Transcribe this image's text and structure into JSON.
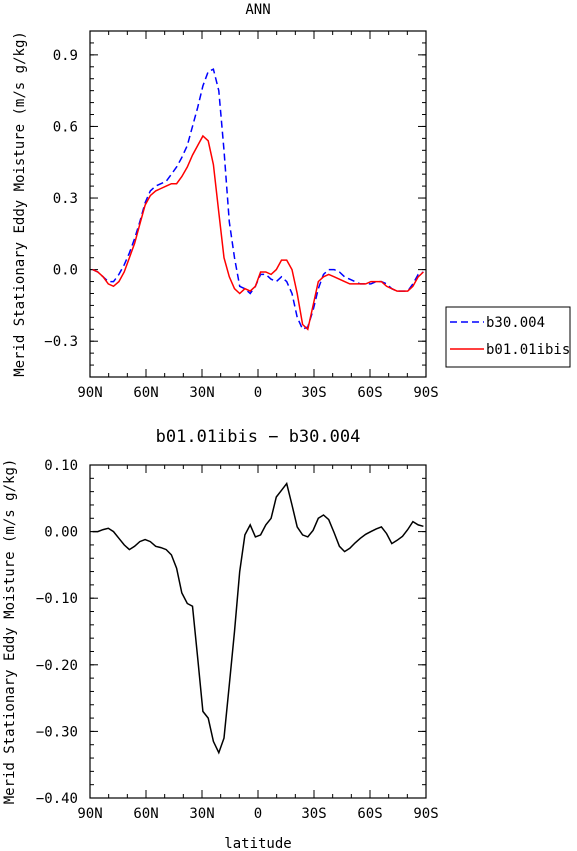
{
  "chart_data": [
    {
      "type": "line",
      "title": "ANN",
      "xlabel": "",
      "ylabel": "Merid Stationary Eddy Moisture (m/s g/kg)",
      "xlim": [
        90,
        -90
      ],
      "ylim": [
        -0.45,
        1.0
      ],
      "x_ticks": [
        {
          "value": 90,
          "label": "90N"
        },
        {
          "value": 60,
          "label": "60N"
        },
        {
          "value": 30,
          "label": "30N"
        },
        {
          "value": 0,
          "label": "0"
        },
        {
          "value": -30,
          "label": "30S"
        },
        {
          "value": -60,
          "label": "60S"
        },
        {
          "value": -90,
          "label": "90S"
        }
      ],
      "y_ticks": [
        {
          "value": 0.9,
          "label": "0.9"
        },
        {
          "value": 0.6,
          "label": "0.6"
        },
        {
          "value": 0.3,
          "label": "0.3"
        },
        {
          "value": 0.0,
          "label": "0.0"
        },
        {
          "value": -0.3,
          "label": "−0.3"
        }
      ],
      "legend_position": "right",
      "series": [
        {
          "name": "b30.004",
          "color": "#0000ff",
          "dash": "dashed",
          "x": [
            88.6,
            85.8,
            83,
            80.2,
            77.4,
            74.5,
            71.7,
            68.9,
            66.1,
            63.3,
            60.5,
            57.7,
            54.8,
            52,
            49.2,
            46.4,
            43.6,
            40.8,
            37.9,
            35.1,
            32.3,
            29.5,
            26.7,
            23.9,
            21,
            18.2,
            15.4,
            12.6,
            9.8,
            7,
            4.2,
            1.4,
            -1.4,
            -4.2,
            -7,
            -9.8,
            -12.6,
            -15.4,
            -18.2,
            -21,
            -23.9,
            -26.7,
            -29.5,
            -32.3,
            -35.1,
            -37.9,
            -40.8,
            -43.6,
            -46.4,
            -49.2,
            -52,
            -54.8,
            -57.7,
            -60.5,
            -63.3,
            -66.1,
            -68.9,
            -71.7,
            -74.5,
            -77.4,
            -80.2,
            -83,
            -85.8,
            -88.6
          ],
          "y": [
            0.0,
            -0.01,
            -0.03,
            -0.05,
            -0.05,
            -0.02,
            0.02,
            0.07,
            0.13,
            0.2,
            0.28,
            0.33,
            0.35,
            0.36,
            0.37,
            0.4,
            0.43,
            0.47,
            0.52,
            0.6,
            0.68,
            0.77,
            0.83,
            0.84,
            0.75,
            0.5,
            0.2,
            0.05,
            -0.07,
            -0.08,
            -0.1,
            -0.07,
            -0.02,
            -0.02,
            -0.04,
            -0.05,
            -0.03,
            -0.05,
            -0.1,
            -0.2,
            -0.25,
            -0.24,
            -0.17,
            -0.08,
            -0.02,
            0.0,
            0.0,
            -0.01,
            -0.03,
            -0.04,
            -0.05,
            -0.06,
            -0.06,
            -0.06,
            -0.05,
            -0.05,
            -0.06,
            -0.08,
            -0.09,
            -0.09,
            -0.09,
            -0.06,
            -0.02,
            -0.01
          ]
        },
        {
          "name": "b01.01ibis",
          "color": "#ff0000",
          "dash": "solid",
          "x": [
            88.6,
            85.8,
            83,
            80.2,
            77.4,
            74.5,
            71.7,
            68.9,
            66.1,
            63.3,
            60.5,
            57.7,
            54.8,
            52,
            49.2,
            46.4,
            43.6,
            40.8,
            37.9,
            35.1,
            32.3,
            29.5,
            26.7,
            23.9,
            21,
            18.2,
            15.4,
            12.6,
            9.8,
            7,
            4.2,
            1.4,
            -1.4,
            -4.2,
            -7,
            -9.8,
            -12.6,
            -15.4,
            -18.2,
            -21,
            -23.9,
            -26.7,
            -29.5,
            -32.3,
            -35.1,
            -37.9,
            -40.8,
            -43.6,
            -46.4,
            -49.2,
            -52,
            -54.8,
            -57.7,
            -60.5,
            -63.3,
            -66.1,
            -68.9,
            -71.7,
            -74.5,
            -77.4,
            -80.2,
            -83,
            -85.8,
            -88.6
          ],
          "y": [
            0.0,
            -0.01,
            -0.03,
            -0.06,
            -0.07,
            -0.05,
            -0.01,
            0.05,
            0.11,
            0.19,
            0.27,
            0.31,
            0.33,
            0.34,
            0.35,
            0.36,
            0.36,
            0.39,
            0.43,
            0.48,
            0.52,
            0.56,
            0.54,
            0.44,
            0.24,
            0.05,
            -0.03,
            -0.08,
            -0.1,
            -0.08,
            -0.09,
            -0.07,
            -0.01,
            -0.01,
            -0.02,
            0.0,
            0.04,
            0.04,
            0.0,
            -0.1,
            -0.23,
            -0.25,
            -0.15,
            -0.05,
            -0.03,
            -0.02,
            -0.03,
            -0.04,
            -0.05,
            -0.06,
            -0.06,
            -0.06,
            -0.06,
            -0.05,
            -0.05,
            -0.05,
            -0.07,
            -0.08,
            -0.09,
            -0.09,
            -0.09,
            -0.07,
            -0.03,
            -0.01
          ]
        }
      ]
    },
    {
      "type": "line",
      "title": "b01.01ibis − b30.004",
      "xlabel": "latitude",
      "ylabel": "Merid Stationary Eddy Moisture (m/s g/kg)",
      "xlim": [
        90,
        -90
      ],
      "ylim": [
        -0.4,
        0.1
      ],
      "x_ticks": [
        {
          "value": 90,
          "label": "90N"
        },
        {
          "value": 60,
          "label": "60N"
        },
        {
          "value": 30,
          "label": "30N"
        },
        {
          "value": 0,
          "label": "0"
        },
        {
          "value": -30,
          "label": "30S"
        },
        {
          "value": -60,
          "label": "60S"
        },
        {
          "value": -90,
          "label": "90S"
        }
      ],
      "y_ticks": [
        {
          "value": 0.1,
          "label": "0.10"
        },
        {
          "value": 0.0,
          "label": "0.00"
        },
        {
          "value": -0.1,
          "label": "−0.10"
        },
        {
          "value": -0.2,
          "label": "−0.20"
        },
        {
          "value": -0.3,
          "label": "−0.30"
        },
        {
          "value": -0.4,
          "label": "−0.40"
        }
      ],
      "series": [
        {
          "name": "",
          "color": "#000000",
          "dash": "solid",
          "x": [
            88.6,
            85.8,
            83,
            80.2,
            77.4,
            74.5,
            71.7,
            68.9,
            66.1,
            63.3,
            60.5,
            57.7,
            54.8,
            52,
            49.2,
            46.4,
            43.6,
            40.8,
            37.9,
            35.1,
            32.3,
            29.5,
            26.7,
            23.9,
            21,
            18.2,
            15.4,
            12.6,
            9.8,
            7,
            4.2,
            1.4,
            -1.4,
            -4.2,
            -7,
            -9.8,
            -12.6,
            -15.4,
            -18.2,
            -21,
            -23.9,
            -26.7,
            -29.5,
            -32.3,
            -35.1,
            -37.9,
            -40.8,
            -43.6,
            -46.4,
            -49.2,
            -52,
            -54.8,
            -57.7,
            -60.5,
            -63.3,
            -66.1,
            -68.9,
            -71.7,
            -74.5,
            -77.4,
            -80.2,
            -83,
            -85.8,
            -88.6
          ],
          "y": [
            0.0,
            0.0,
            0.003,
            0.005,
            0.0,
            -0.01,
            -0.02,
            -0.027,
            -0.022,
            -0.015,
            -0.012,
            -0.015,
            -0.022,
            -0.024,
            -0.027,
            -0.035,
            -0.055,
            -0.092,
            -0.108,
            -0.112,
            -0.19,
            -0.27,
            -0.28,
            -0.315,
            -0.332,
            -0.31,
            -0.23,
            -0.15,
            -0.06,
            -0.005,
            0.01,
            -0.008,
            -0.005,
            0.01,
            0.02,
            0.052,
            0.062,
            0.072,
            0.04,
            0.007,
            -0.005,
            -0.008,
            0.002,
            0.02,
            0.025,
            0.018,
            -0.002,
            -0.022,
            -0.03,
            -0.025,
            -0.017,
            -0.01,
            -0.004,
            0.0,
            0.004,
            0.007,
            -0.003,
            -0.018,
            -0.013,
            -0.007,
            0.003,
            0.015,
            0.01,
            0.008
          ]
        }
      ]
    }
  ]
}
